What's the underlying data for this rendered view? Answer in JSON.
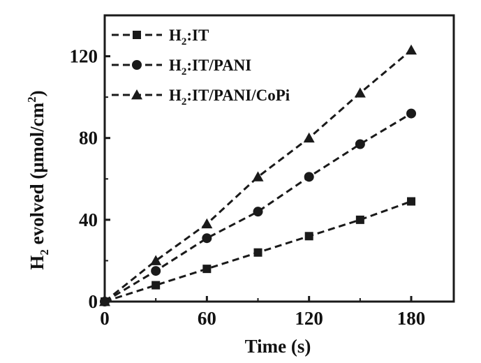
{
  "chart_data": {
    "type": "line",
    "title": "",
    "xlabel": "Time (s)",
    "ylabel_parts": {
      "prefix": "H",
      "sub": "2",
      "mid": " evolved (μmol/cm",
      "sup": "2",
      "suffix": ")"
    },
    "xlim": [
      0,
      205
    ],
    "ylim": [
      0,
      140
    ],
    "xticks": [
      0,
      60,
      120,
      180
    ],
    "yticks": [
      0,
      40,
      80,
      120
    ],
    "grid": false,
    "legend_position": "top-left",
    "line_style": "dashed",
    "line_color": "#1a1a1a",
    "series": [
      {
        "name_parts": {
          "a": "H",
          "sub": "2",
          "b": ":IT"
        },
        "marker": "square",
        "x": [
          0,
          30,
          60,
          90,
          120,
          150,
          180
        ],
        "y": [
          0,
          8,
          16,
          24,
          32,
          40,
          49
        ]
      },
      {
        "name_parts": {
          "a": "H",
          "sub": "2",
          "b": ":IT/PANI"
        },
        "marker": "circle",
        "x": [
          0,
          30,
          60,
          90,
          120,
          150,
          180
        ],
        "y": [
          0,
          15,
          31,
          44,
          61,
          77,
          92
        ]
      },
      {
        "name_parts": {
          "a": "H",
          "sub": "2",
          "b": ":IT/PANI/CoPi"
        },
        "marker": "triangle",
        "x": [
          0,
          30,
          60,
          90,
          120,
          150,
          180
        ],
        "y": [
          0,
          20,
          38,
          61,
          80,
          102,
          123
        ]
      }
    ]
  }
}
